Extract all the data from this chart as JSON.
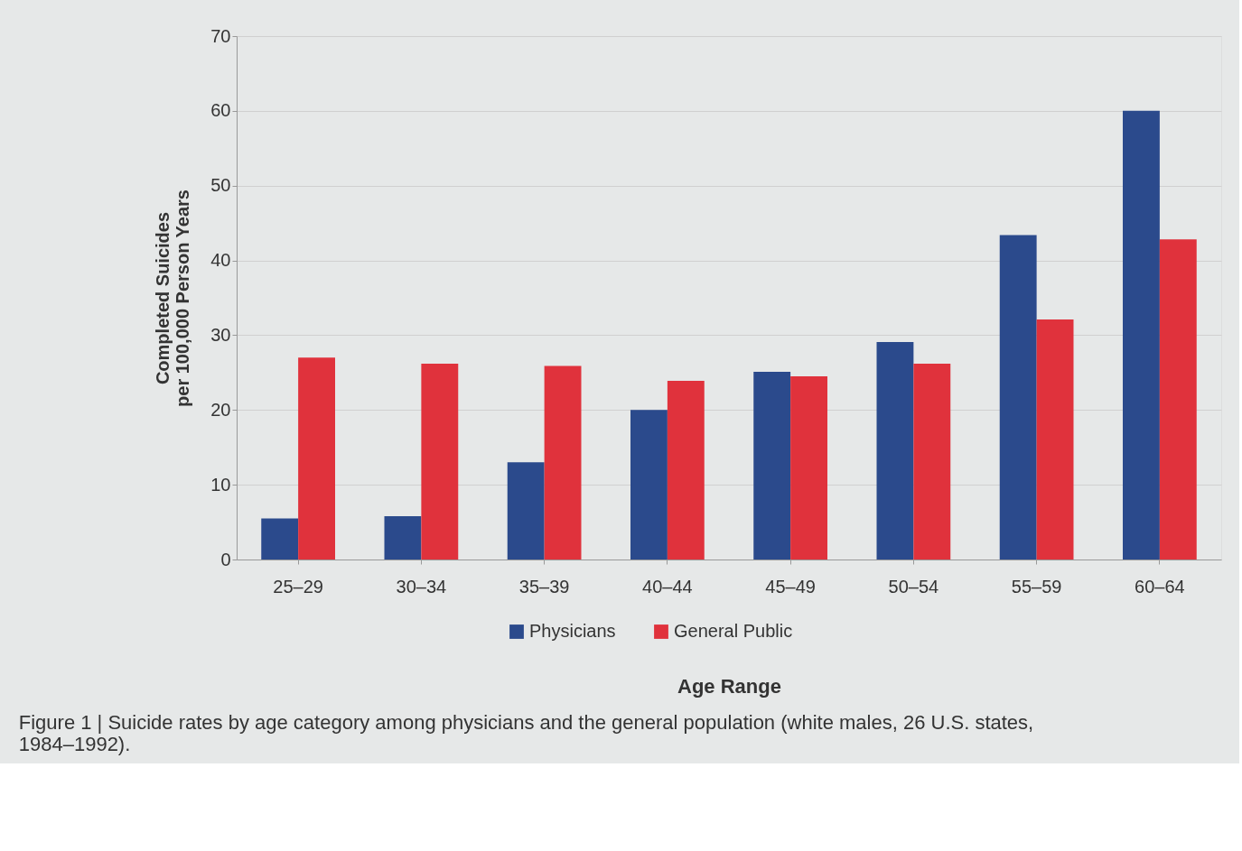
{
  "chart_data": {
    "type": "bar",
    "xlabel": "Age Range",
    "ylabel": "Completed Suicides\nper 100,000 Person Years",
    "categories": [
      "25–29",
      "30–34",
      "35–39",
      "40–44",
      "45–49",
      "50–54",
      "55–59",
      "60–64"
    ],
    "series": [
      {
        "name": "Physicians",
        "color": "#2b4a8c",
        "values": [
          5.5,
          5.8,
          13.0,
          20.0,
          25.1,
          29.1,
          43.4,
          60.0
        ]
      },
      {
        "name": "General Public",
        "color": "#e0323c",
        "values": [
          27.0,
          26.2,
          25.9,
          23.9,
          24.5,
          26.2,
          32.1,
          42.8
        ]
      }
    ],
    "ylim": [
      0,
      70
    ],
    "yticks": [
      0,
      10,
      20,
      30,
      40,
      50,
      60,
      70
    ],
    "grid": "y",
    "legend": "bottom",
    "annotations": [
      "Figure 1 | Suicide rates by age category among physicians and the general population (white males, 26 U.S. states, 1984–1992)."
    ]
  }
}
